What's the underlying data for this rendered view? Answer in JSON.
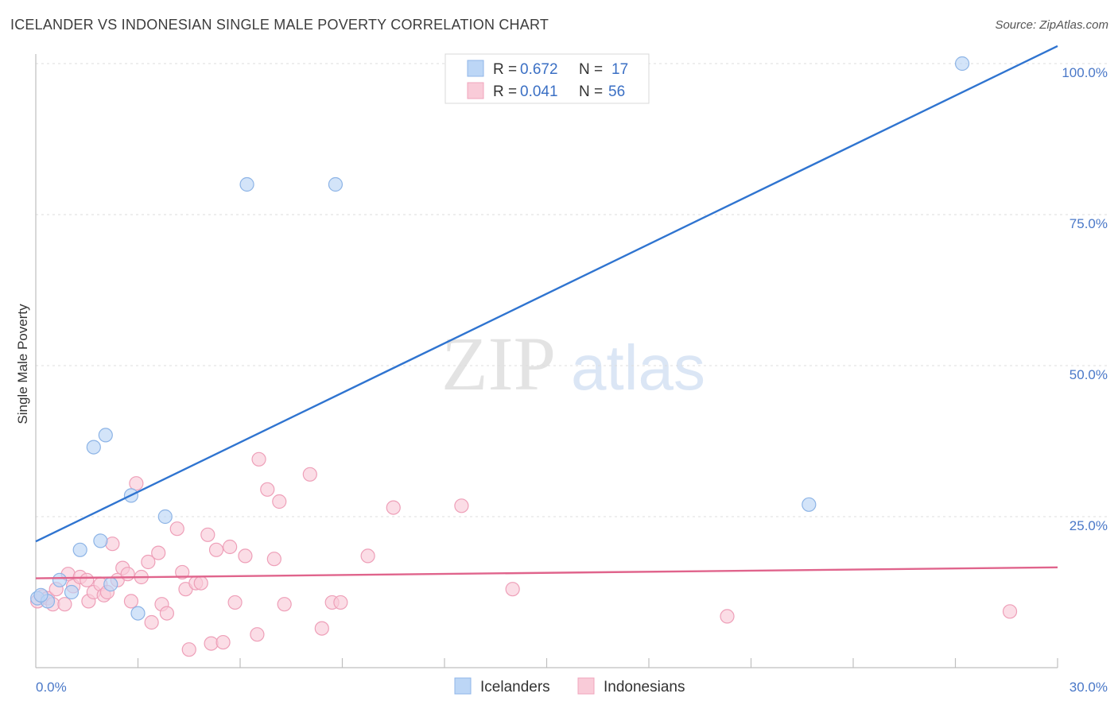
{
  "header": {
    "title": "ICELANDER VS INDONESIAN SINGLE MALE POVERTY CORRELATION CHART",
    "source": "Source: ZipAtlas.com"
  },
  "watermark": {
    "zip": "ZIP",
    "atlas": "atlas"
  },
  "chart_data": {
    "type": "scatter",
    "title": "ICELANDER VS INDONESIAN SINGLE MALE POVERTY CORRELATION CHART",
    "xlabel": "",
    "ylabel": "Single Male Poverty",
    "xlim": [
      0,
      30
    ],
    "ylim": [
      0,
      100
    ],
    "x_tick_labels": [
      "0.0%",
      "30.0%"
    ],
    "y_ticks": [
      25,
      50,
      75,
      100
    ],
    "y_tick_labels": [
      "25.0%",
      "50.0%",
      "75.0%",
      "100.0%"
    ],
    "colors": {
      "icelanders": "#a8c8f0",
      "icelanders_line": "#2f74d0",
      "indonesians": "#f5b8c8",
      "indonesians_line": "#e0648c",
      "axis_text": "#4a78c8"
    },
    "legend": {
      "rows": [
        {
          "r_label": "R =",
          "r_value": "0.672",
          "n_label": "N =",
          "n_value": "17"
        },
        {
          "r_label": "R =",
          "r_value": "0.041",
          "n_label": "N =",
          "n_value": "56"
        }
      ]
    },
    "series": [
      {
        "name": "Icelanders",
        "trend": {
          "x": [
            0,
            30
          ],
          "y": [
            20.9,
            102.9
          ]
        },
        "points": [
          [
            0.05,
            11.5
          ],
          [
            0.35,
            11.0
          ],
          [
            0.7,
            14.5
          ],
          [
            1.05,
            12.5
          ],
          [
            1.3,
            19.5
          ],
          [
            1.7,
            36.5
          ],
          [
            1.9,
            21.0
          ],
          [
            2.05,
            38.5
          ],
          [
            2.2,
            13.8
          ],
          [
            2.8,
            28.5
          ],
          [
            3.0,
            9.0
          ],
          [
            3.8,
            25.0
          ],
          [
            6.2,
            80.0
          ],
          [
            8.8,
            80.0
          ],
          [
            22.7,
            27.0
          ],
          [
            27.2,
            100.0
          ],
          [
            0.15,
            12.0
          ]
        ]
      },
      {
        "name": "Indonesians",
        "trend": {
          "x": [
            0,
            30
          ],
          "y": [
            14.8,
            16.6
          ]
        },
        "points": [
          [
            0.05,
            11.0
          ],
          [
            0.2,
            11.8
          ],
          [
            0.35,
            11.5
          ],
          [
            0.5,
            10.5
          ],
          [
            0.6,
            13.0
          ],
          [
            0.85,
            10.5
          ],
          [
            0.95,
            15.5
          ],
          [
            1.1,
            13.5
          ],
          [
            1.3,
            15.0
          ],
          [
            1.5,
            14.5
          ],
          [
            1.55,
            11.0
          ],
          [
            1.7,
            12.5
          ],
          [
            1.9,
            13.8
          ],
          [
            2.0,
            12.0
          ],
          [
            2.1,
            12.5
          ],
          [
            2.25,
            20.5
          ],
          [
            2.4,
            14.5
          ],
          [
            2.55,
            16.5
          ],
          [
            2.7,
            15.5
          ],
          [
            2.8,
            11.0
          ],
          [
            2.95,
            30.5
          ],
          [
            3.1,
            15.0
          ],
          [
            3.3,
            17.5
          ],
          [
            3.4,
            7.5
          ],
          [
            3.6,
            19.0
          ],
          [
            3.7,
            10.5
          ],
          [
            3.85,
            9.0
          ],
          [
            4.15,
            23.0
          ],
          [
            4.3,
            15.8
          ],
          [
            4.4,
            13.0
          ],
          [
            4.5,
            3.0
          ],
          [
            4.7,
            14.0
          ],
          [
            4.85,
            14.0
          ],
          [
            5.05,
            22.0
          ],
          [
            5.15,
            4.0
          ],
          [
            5.3,
            19.5
          ],
          [
            5.5,
            4.2
          ],
          [
            5.7,
            20.0
          ],
          [
            5.85,
            10.8
          ],
          [
            6.15,
            18.5
          ],
          [
            6.5,
            5.5
          ],
          [
            6.55,
            34.5
          ],
          [
            6.8,
            29.5
          ],
          [
            7.0,
            18.0
          ],
          [
            7.15,
            27.5
          ],
          [
            7.3,
            10.5
          ],
          [
            8.05,
            32.0
          ],
          [
            8.4,
            6.5
          ],
          [
            8.7,
            10.8
          ],
          [
            8.95,
            10.8
          ],
          [
            9.75,
            18.5
          ],
          [
            10.5,
            26.5
          ],
          [
            12.5,
            26.8
          ],
          [
            14.0,
            13.0
          ],
          [
            20.3,
            8.5
          ],
          [
            28.6,
            9.3
          ]
        ]
      }
    ]
  },
  "bottom_legend": {
    "icelanders": "Icelanders",
    "indonesians": "Indonesians"
  }
}
